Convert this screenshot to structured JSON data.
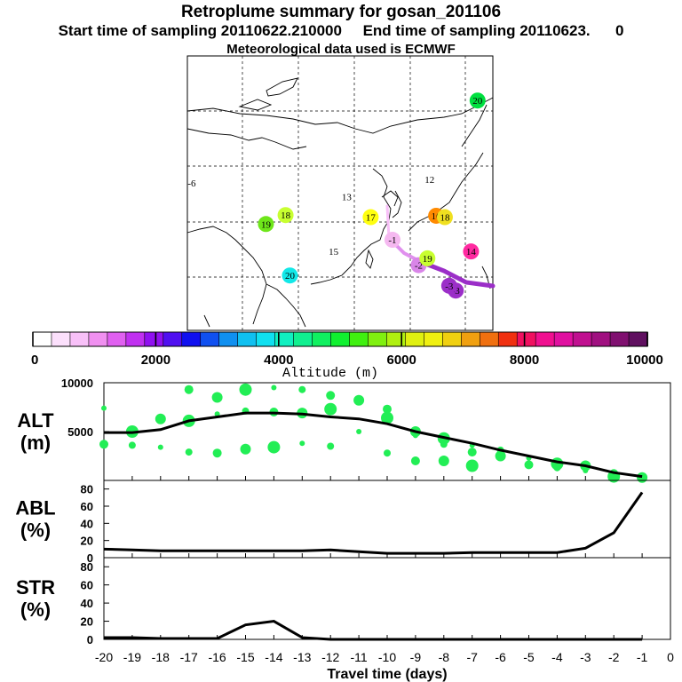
{
  "header": {
    "title": "Retroplume summary for gosan_201106",
    "sampling": "Start time of sampling 20110622.210000     End time of sampling 20110623.      0",
    "met": "Meteorological data used is ECMWF"
  },
  "map": {
    "markers": [
      {
        "label": "-1",
        "lon": 127.0,
        "lat": 33.2,
        "color": "#f5b8f0"
      },
      {
        "label": "-2",
        "lon": 133.0,
        "lat": 29.5,
        "color": "#d985e8"
      },
      {
        "label": "-3",
        "lon": 141.5,
        "lat": 25.8,
        "color": "#9b2ec8"
      },
      {
        "label": "-3",
        "lon": 140.0,
        "lat": 26.5,
        "color": "#9b2ec8"
      },
      {
        "label": "-6",
        "lon": 81.0,
        "lat": 41.5,
        "color": "#ffffff"
      },
      {
        "label": "12",
        "lon": 135.5,
        "lat": 42.0,
        "color": "#ffffff"
      },
      {
        "label": "13",
        "lon": 116.5,
        "lat": 39.5,
        "color": "#ffffff"
      },
      {
        "label": "14",
        "lon": 145.0,
        "lat": 31.5,
        "color": "#ff2aa0"
      },
      {
        "label": "15",
        "lon": 113.5,
        "lat": 31.5,
        "color": "#ffffff"
      },
      {
        "label": "16",
        "lon": 137.0,
        "lat": 36.7,
        "color": "#ff8a00"
      },
      {
        "label": "17",
        "lon": 122.0,
        "lat": 36.5,
        "color": "#ffff10"
      },
      {
        "label": "18",
        "lon": 139.0,
        "lat": 36.5,
        "color": "#f0e020"
      },
      {
        "label": "18",
        "lon": 102.5,
        "lat": 36.8,
        "color": "#c8ff30"
      },
      {
        "label": "19",
        "lon": 98.0,
        "lat": 35.5,
        "color": "#6ee61a"
      },
      {
        "label": "19",
        "lon": 135.0,
        "lat": 30.5,
        "color": "#c8ff30"
      },
      {
        "label": "20",
        "lon": 103.5,
        "lat": 28.0,
        "color": "#12e8e8"
      },
      {
        "label": "20",
        "lon": 146.5,
        "lat": 53.5,
        "color": "#00e040"
      }
    ]
  },
  "colorbar": {
    "title": "Altitude (m)",
    "ticks": [
      "0",
      "2000",
      "4000",
      "6000",
      "8000",
      "10000"
    ],
    "colors": [
      "#ffffff",
      "#fce0fc",
      "#f8c0f8",
      "#f090f0",
      "#e060f0",
      "#c030f0",
      "#9010f0",
      "#5010f0",
      "#1010f0",
      "#1050f0",
      "#1090f0",
      "#10c0f0",
      "#10e0f0",
      "#10f0c0",
      "#10f090",
      "#10f060",
      "#10f030",
      "#40f010",
      "#80f010",
      "#b0f010",
      "#e0f010",
      "#f0f010",
      "#f0d010",
      "#f0a010",
      "#f07010",
      "#f03010",
      "#f01060",
      "#f01090",
      "#e010a0",
      "#c01090",
      "#a01080",
      "#801070",
      "#601060"
    ]
  },
  "chart_data": [
    {
      "type": "line",
      "ylabel": "ALT\n(m)",
      "ylim": [
        0,
        10000
      ],
      "yticks": [
        "10000",
        "5000"
      ],
      "x": [
        -20,
        -19,
        -18,
        -17,
        -16,
        -15,
        -14,
        -13,
        -12,
        -11,
        -10,
        -9,
        -8,
        -7,
        -6,
        -5,
        -4,
        -3,
        -2,
        -1
      ],
      "series": [
        {
          "name": "mean altitude",
          "values": [
            4900,
            4900,
            5200,
            6100,
            6500,
            6900,
            6900,
            6800,
            6500,
            6300,
            5800,
            5000,
            4400,
            3800,
            3100,
            2500,
            1900,
            1500,
            800,
            400
          ]
        }
      ],
      "scatter": {
        "name": "plume altitude",
        "x": [
          -20,
          -20,
          -19,
          -19,
          -18,
          -18,
          -17,
          -17,
          -17,
          -16,
          -16,
          -16,
          -15,
          -15,
          -15,
          -14,
          -14,
          -14,
          -13,
          -13,
          -13,
          -12,
          -12,
          -12,
          -11,
          -11,
          -10,
          -10,
          -10,
          -9,
          -9,
          -9,
          -8,
          -8,
          -8,
          -7,
          -7,
          -7,
          -6,
          -6,
          -5,
          -5,
          -4,
          -4,
          -3,
          -3,
          -2,
          -2,
          -1,
          -1
        ],
        "y": [
          7400,
          3700,
          5000,
          3600,
          6300,
          3400,
          9300,
          6100,
          2900,
          8500,
          6800,
          2800,
          9300,
          7100,
          3200,
          9500,
          7000,
          3400,
          9300,
          6900,
          3800,
          8700,
          7300,
          3500,
          8200,
          5000,
          7300,
          6400,
          2800,
          5000,
          4600,
          2000,
          4300,
          3700,
          2000,
          3600,
          2900,
          1500,
          3100,
          2500,
          2300,
          1600,
          1700,
          1300,
          1500,
          1000,
          700,
          400,
          400,
          300
        ]
      }
    },
    {
      "type": "line",
      "ylabel": "ABL\n(%)",
      "ylim": [
        0,
        90
      ],
      "yticks": [
        "0",
        "20",
        "40",
        "60",
        "80"
      ],
      "x": [
        -20,
        -19,
        -18,
        -17,
        -16,
        -15,
        -14,
        -13,
        -12,
        -11,
        -10,
        -9,
        -8,
        -7,
        -6,
        -5,
        -4,
        -3,
        -2,
        -1
      ],
      "series": [
        {
          "name": "ABL fraction",
          "values": [
            10,
            9,
            8,
            8,
            8,
            8,
            8,
            8,
            9,
            7,
            5,
            5,
            5,
            6,
            6,
            6,
            6,
            11,
            29,
            76
          ]
        }
      ]
    },
    {
      "type": "line",
      "ylabel": "STR\n(%)",
      "ylim": [
        0,
        90
      ],
      "yticks": [
        "0",
        "20",
        "40",
        "60",
        "80"
      ],
      "xlabel": "Travel time (days)",
      "xticks": [
        "-20",
        "-19",
        "-18",
        "-17",
        "-16",
        "-15",
        "-14",
        "-13",
        "-12",
        "-11",
        "-10",
        "-9",
        "-8",
        "-7",
        "-6",
        "-5",
        "-4",
        "-3",
        "-2",
        "-1",
        "0"
      ],
      "x": [
        -20,
        -19,
        -18,
        -17,
        -16,
        -15,
        -14,
        -13,
        -12,
        -11,
        -10,
        -9,
        -8,
        -7,
        -6,
        -5,
        -4,
        -3,
        -2,
        -1
      ],
      "series": [
        {
          "name": "stratospheric fraction",
          "values": [
            2,
            2,
            1,
            1,
            1,
            16,
            20,
            2,
            0,
            0,
            0,
            0,
            0,
            0,
            0,
            0,
            0,
            0,
            0,
            0
          ]
        }
      ]
    }
  ]
}
